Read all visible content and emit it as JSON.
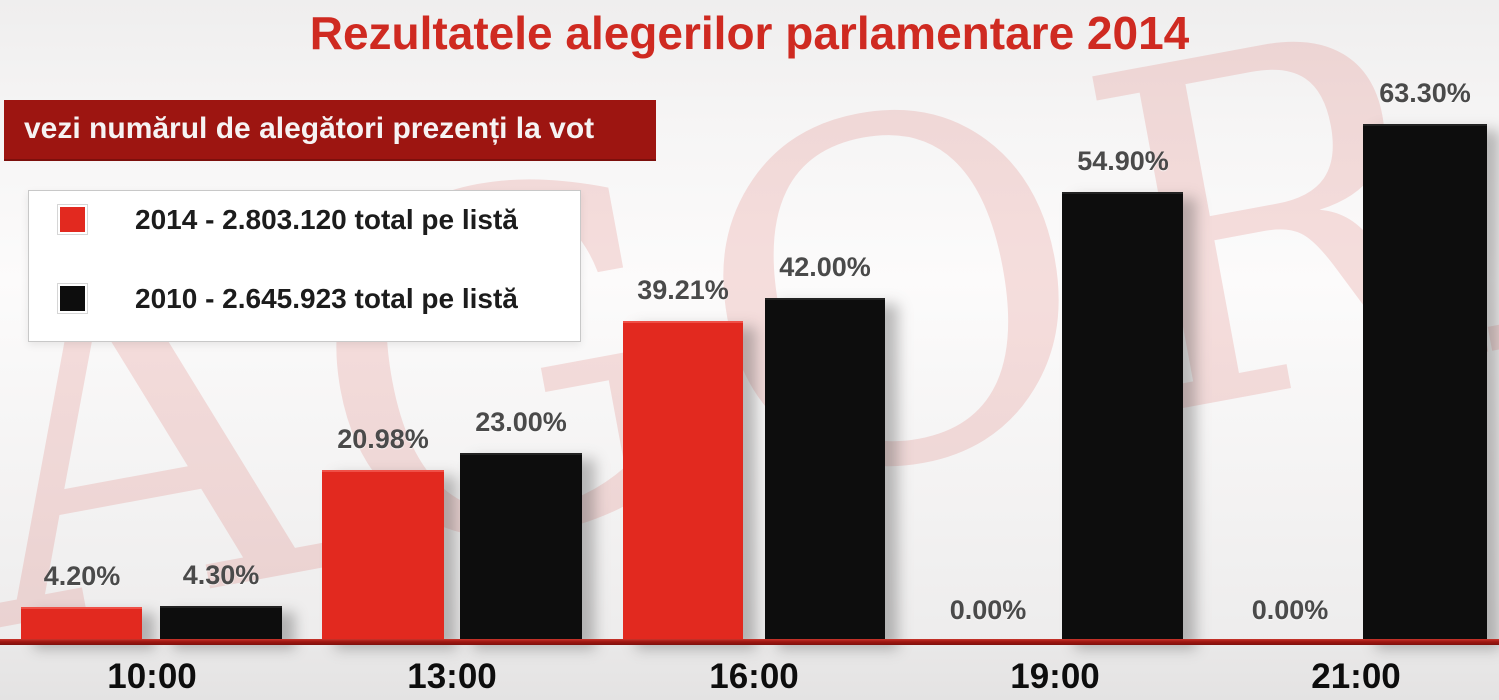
{
  "watermark": {
    "text": "AGORA",
    "color": "#d94c46"
  },
  "banner": {
    "text": "vezi numărul de alegători prezenți la vot",
    "background": "#9d1511",
    "text_color": "#ffffff"
  },
  "chart_data": {
    "type": "bar",
    "title": "Rezultatele alegerilor parlamentare 2014",
    "title_color": "#cf2a21",
    "categories": [
      "10:00",
      "13:00",
      "16:00",
      "19:00",
      "21:00"
    ],
    "series": [
      {
        "name": "2014 - 2.803.120 total pe listă",
        "year": "2014",
        "total_pe_lista": "2.803.120",
        "color": "#e2291f",
        "values": [
          4.2,
          20.98,
          39.21,
          0.0,
          0.0
        ],
        "labels": [
          "4.20%",
          "20.98%",
          "39.21%",
          "0.00%",
          "0.00%"
        ]
      },
      {
        "name": "2010 - 2.645.923 total pe listă",
        "year": "2010",
        "total_pe_lista": "2.645.923",
        "color": "#0d0d0d",
        "values": [
          4.3,
          23.0,
          42.0,
          54.9,
          63.3
        ],
        "labels": [
          "4.30%",
          "23.00%",
          "42.00%",
          "54.90%",
          "63.30%"
        ]
      }
    ],
    "xlabel": "",
    "ylabel": "",
    "ylim": [
      0,
      70
    ],
    "grid": false,
    "legend_position": "top-left",
    "value_label_format": "0.00%"
  }
}
